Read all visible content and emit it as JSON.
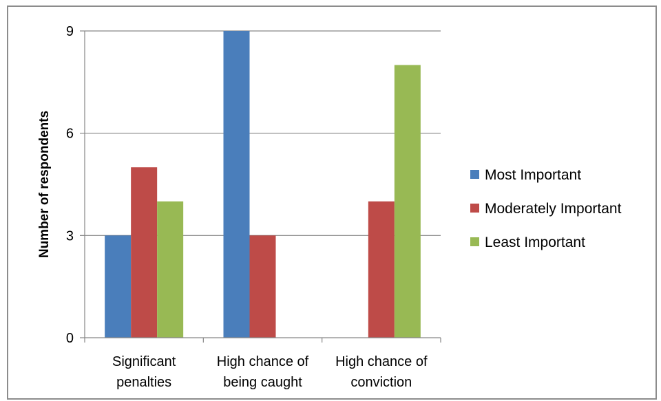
{
  "chart_data": {
    "type": "bar",
    "categories": [
      "Significant penalties",
      "High chance of being caught",
      "High chance of conviction"
    ],
    "category_lines": [
      [
        "Significant",
        "penalties"
      ],
      [
        "High chance of",
        "being caught"
      ],
      [
        "High chance of",
        "conviction"
      ]
    ],
    "series": [
      {
        "name": "Most Important",
        "color": "#4a7ebb",
        "values": [
          3,
          9,
          0
        ]
      },
      {
        "name": "Moderately Important",
        "color": "#be4b48",
        "values": [
          5,
          3,
          4
        ]
      },
      {
        "name": "Least Important",
        "color": "#98b954",
        "values": [
          4,
          0,
          8
        ]
      }
    ],
    "ylabel": "Number of respondents",
    "ylim": [
      0,
      9
    ],
    "yticks": [
      0,
      3,
      6,
      9
    ],
    "grid": true,
    "legend": "right"
  }
}
